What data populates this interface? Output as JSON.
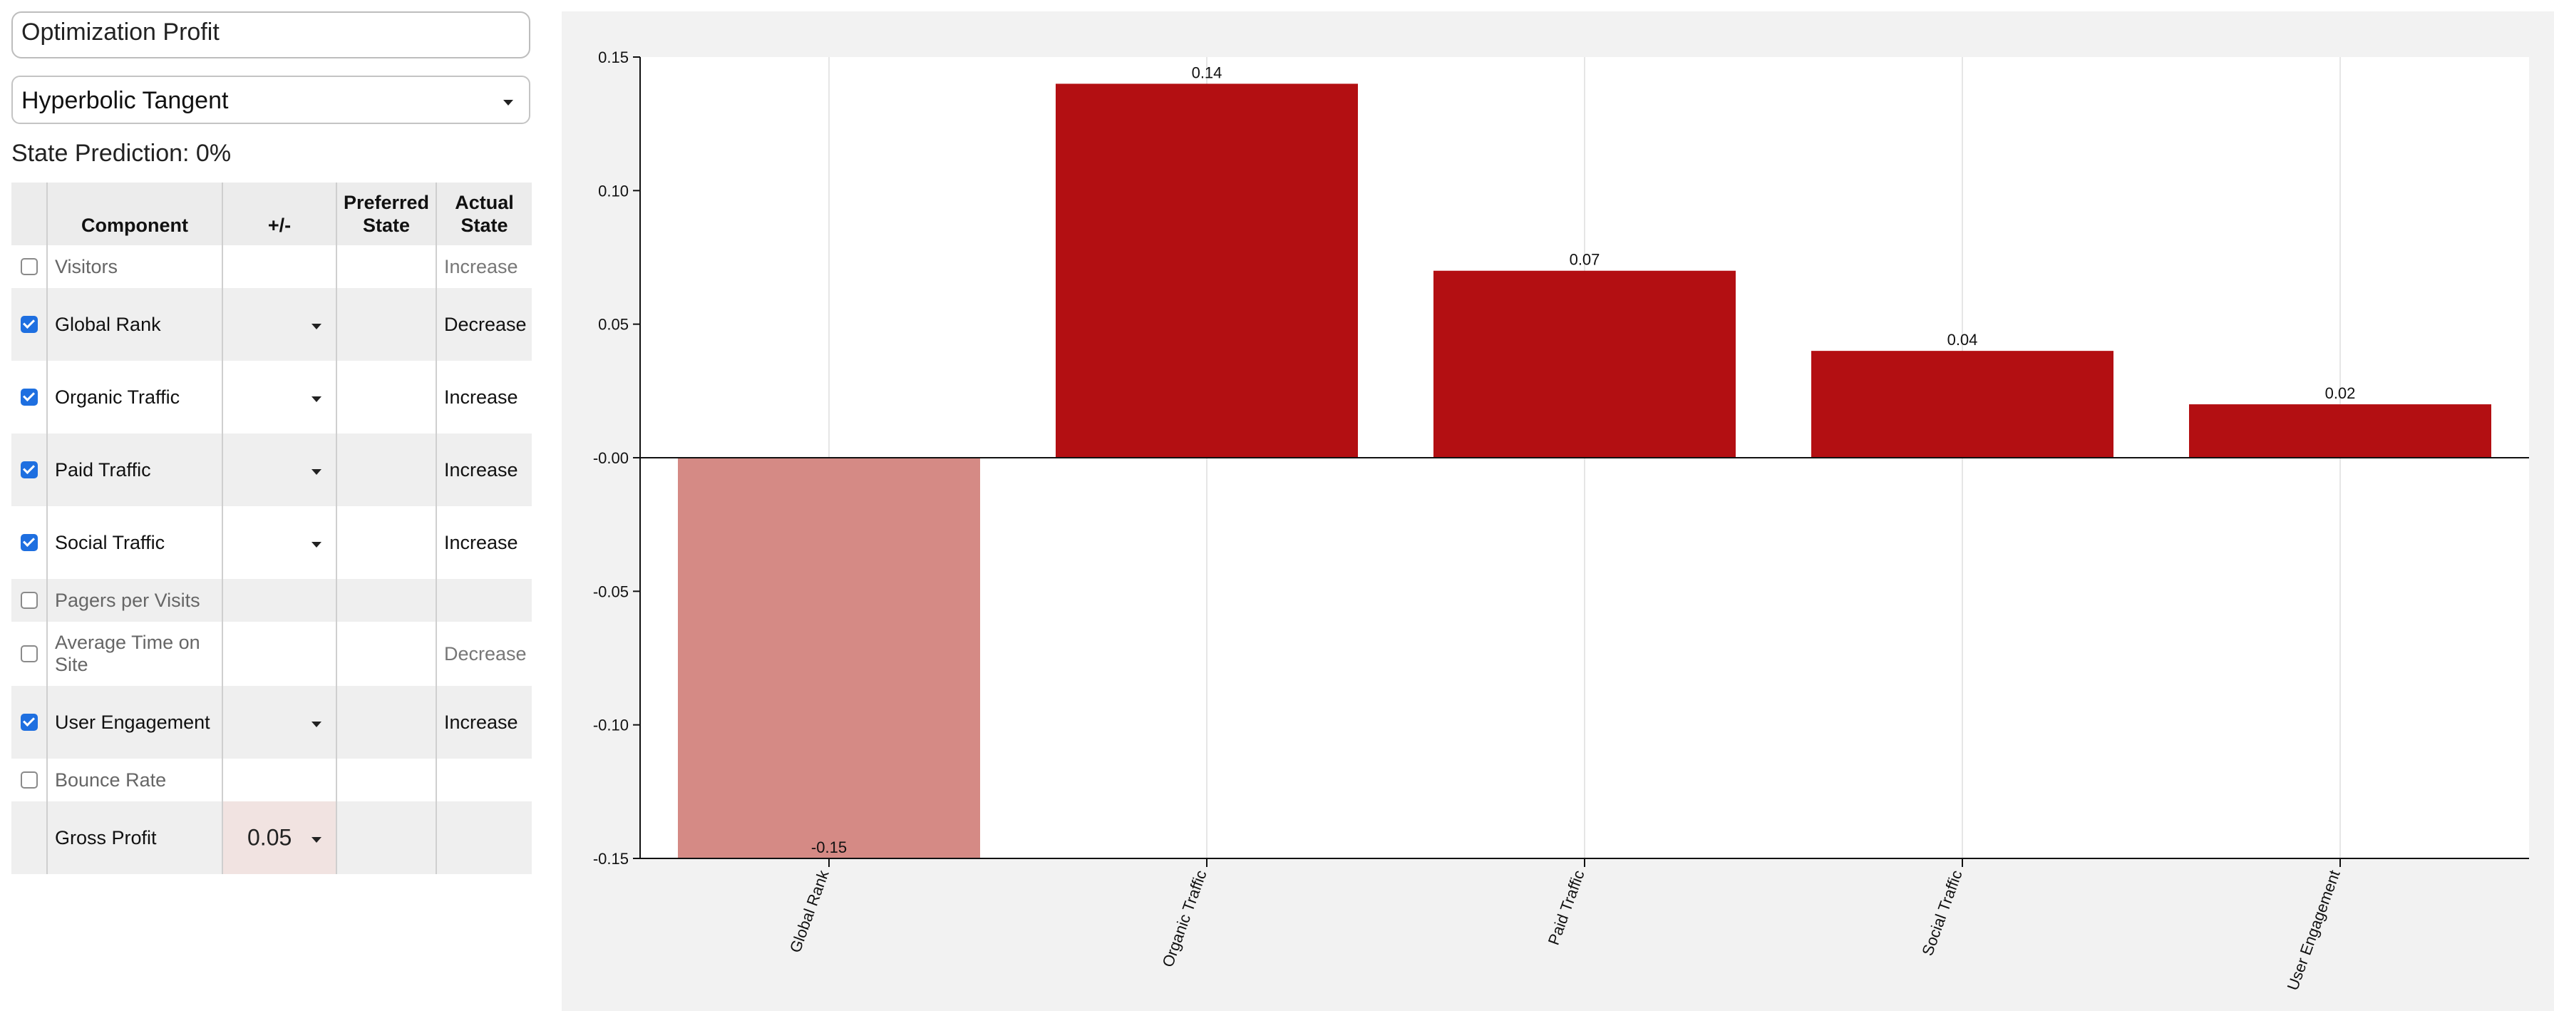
{
  "title": "Optimization Profit",
  "activation_select": {
    "value": "Hyperbolic Tangent"
  },
  "state_prediction": "State Prediction: 0%",
  "table": {
    "headers": {
      "component": "Component",
      "plus_minus": "+/-",
      "preferred_line1": "Preferred",
      "preferred_line2": "State",
      "actual_line1": "Actual",
      "actual_line2": "State"
    },
    "rows": [
      {
        "component": "Visitors",
        "checked": false,
        "has_dropdown": false,
        "actual": "Increase"
      },
      {
        "component": "Global Rank",
        "checked": true,
        "has_dropdown": true,
        "actual": "Decrease"
      },
      {
        "component": "Organic Traffic",
        "checked": true,
        "has_dropdown": true,
        "actual": "Increase"
      },
      {
        "component": "Paid Traffic",
        "checked": true,
        "has_dropdown": true,
        "actual": "Increase"
      },
      {
        "component": "Social Traffic",
        "checked": true,
        "has_dropdown": true,
        "actual": "Increase"
      },
      {
        "component": "Pagers per Visits",
        "checked": false,
        "has_dropdown": false,
        "actual": ""
      },
      {
        "component": "Average Time on Site",
        "checked": false,
        "has_dropdown": false,
        "actual": "Decrease"
      },
      {
        "component": "User Engagement",
        "checked": true,
        "has_dropdown": true,
        "actual": "Increase"
      },
      {
        "component": "Bounce Rate",
        "checked": false,
        "has_dropdown": false,
        "actual": ""
      },
      {
        "component": "Gross Profit",
        "checked": null,
        "has_dropdown": true,
        "value": "0.05",
        "actual": ""
      }
    ]
  },
  "chart_data": {
    "type": "bar",
    "categories": [
      "Global Rank",
      "Organic Traffic",
      "Paid Traffic",
      "Social Traffic",
      "User Engagement"
    ],
    "values": [
      -0.15,
      0.14,
      0.07,
      0.04,
      0.02
    ],
    "value_labels": [
      "-0.15",
      "0.14",
      "0.07",
      "0.04",
      "0.02"
    ],
    "ylim": [
      -0.15,
      0.15
    ],
    "yticks": [
      0.15,
      0.1,
      0.05,
      0.0,
      -0.05,
      -0.1,
      -0.15
    ],
    "ytick_labels": [
      "0.15",
      "0.10",
      "0.05",
      "-0.00",
      "-0.05",
      "-0.10",
      "-0.15"
    ],
    "xlabel": "",
    "ylabel": "",
    "title": "",
    "grid": "vertical",
    "colors": {
      "positive": "#b30f12",
      "negative": "#d58a85",
      "panel": "#f2f2f2",
      "plot": "#ffffff"
    }
  }
}
